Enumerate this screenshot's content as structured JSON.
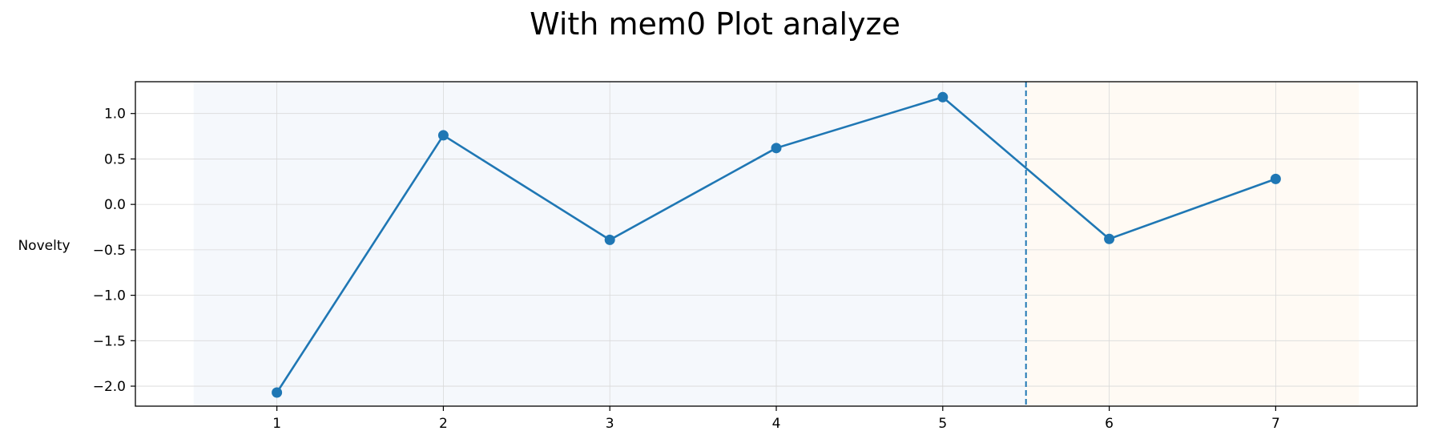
{
  "chart_data": {
    "type": "line",
    "title": "With mem0 Plot analyze",
    "xlabel": "",
    "ylabel": "Novelty",
    "x": [
      1,
      2,
      3,
      4,
      5,
      6,
      7
    ],
    "series": [
      {
        "values": [
          -2.07,
          0.76,
          -0.39,
          0.62,
          1.18,
          -0.38,
          0.28
        ],
        "color": "#1f77b4"
      }
    ],
    "xlim": [
      0.15,
      7.85
    ],
    "ylim": [
      -2.22,
      1.35
    ],
    "xticks": [
      1,
      2,
      3,
      4,
      5,
      6,
      7
    ],
    "yticks": [
      1.0,
      0.5,
      0.0,
      -0.5,
      -1.0,
      -1.5,
      -2.0
    ],
    "ytick_labels": [
      "1.0",
      "0.5",
      "0.0",
      "−0.5",
      "−1.0",
      "−1.5",
      "−2.0"
    ],
    "grid": true,
    "shaded_regions": [
      {
        "x_start": 0.5,
        "x_end": 5.5,
        "color": "#f5f8fc"
      },
      {
        "x_start": 5.5,
        "x_end": 7.5,
        "color": "#fffaf4"
      }
    ],
    "vertical_line": {
      "x": 5.5,
      "style": "dashed",
      "color": "#1f77b4"
    }
  }
}
